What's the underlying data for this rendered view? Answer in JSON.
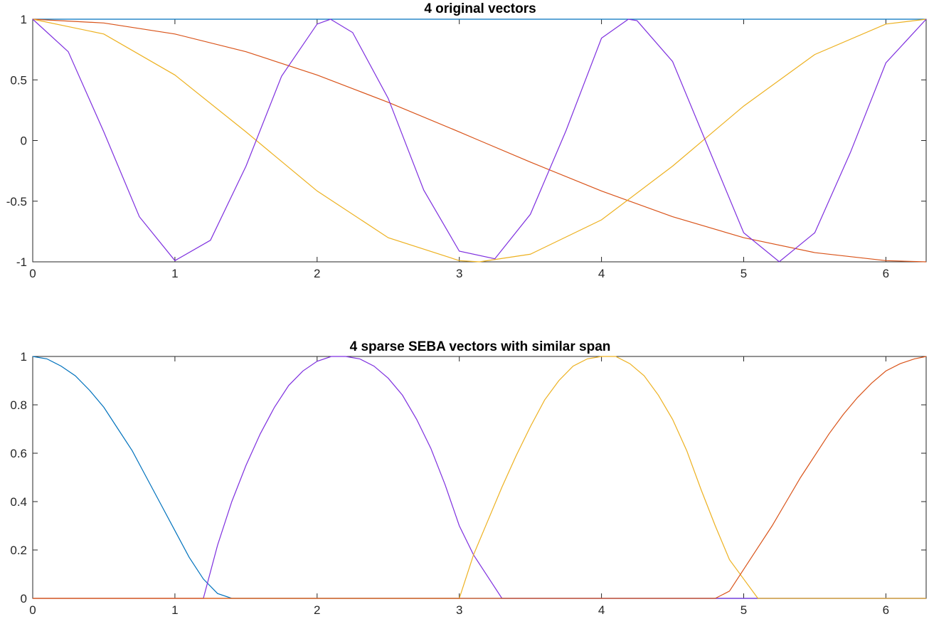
{
  "chart_data": [
    {
      "type": "line",
      "title": "4 original vectors",
      "xlabel": "",
      "ylabel": "",
      "xlim": [
        0,
        6.2832
      ],
      "ylim": [
        -1,
        1
      ],
      "xticks": [
        0,
        1,
        2,
        3,
        4,
        5,
        6
      ],
      "xtick_labels": [
        "0",
        "1",
        "2",
        "3",
        "4",
        "5",
        "6"
      ],
      "yticks": [
        -1,
        -0.5,
        0,
        0.5,
        1
      ],
      "ytick_labels": [
        "-1",
        "-0.5",
        "0",
        "0.5",
        "1"
      ],
      "grid": false,
      "series": [
        {
          "color": "#0072BD",
          "x": [
            0,
            6.2832
          ],
          "y": [
            1,
            1
          ]
        },
        {
          "color": "#D95319",
          "x": [
            0,
            0.5,
            1.0,
            1.5,
            2.0,
            2.5,
            3.0,
            3.1416,
            3.5,
            4.0,
            4.5,
            5.0,
            5.5,
            6.0,
            6.2832
          ],
          "y": [
            1,
            0.969,
            0.878,
            0.732,
            0.54,
            0.315,
            0.071,
            0,
            -0.178,
            -0.416,
            -0.628,
            -0.801,
            -0.924,
            -0.99,
            -1
          ]
        },
        {
          "color": "#EDB120",
          "x": [
            0,
            0.5,
            1.0,
            1.5,
            2.0,
            2.5,
            3.0,
            3.1416,
            3.5,
            4.0,
            4.5,
            5.0,
            5.5,
            6.0,
            6.2832
          ],
          "y": [
            1,
            0.878,
            0.54,
            0.071,
            -0.416,
            -0.801,
            -0.99,
            -1,
            -0.937,
            -0.654,
            -0.211,
            0.284,
            0.709,
            0.96,
            1
          ]
        },
        {
          "color": "#7E2FDF",
          "x": [
            0,
            0.25,
            0.5,
            0.75,
            1.0,
            1.25,
            1.5,
            1.75,
            2.0,
            2.0944,
            2.25,
            2.5,
            2.75,
            3.0,
            3.25,
            3.5,
            3.75,
            4.0,
            4.1888,
            4.25,
            4.5,
            4.75,
            5.0,
            5.25,
            5.5,
            5.75,
            6.0,
            6.2832
          ],
          "y": [
            1,
            0.732,
            0.071,
            -0.628,
            -0.99,
            -0.822,
            -0.211,
            0.53,
            0.96,
            1,
            0.89,
            0.347,
            -0.409,
            -0.912,
            -0.975,
            -0.608,
            0.08,
            0.844,
            1,
            0.988,
            0.651,
            -0.055,
            -0.76,
            -0.999,
            -0.76,
            -0.1,
            0.64,
            1
          ]
        }
      ]
    },
    {
      "type": "line",
      "title": "4 sparse SEBA vectors with similar span",
      "xlabel": "",
      "ylabel": "",
      "xlim": [
        0,
        6.2832
      ],
      "ylim": [
        0,
        1
      ],
      "xticks": [
        0,
        1,
        2,
        3,
        4,
        5,
        6
      ],
      "xtick_labels": [
        "0",
        "1",
        "2",
        "3",
        "4",
        "5",
        "6"
      ],
      "yticks": [
        0,
        0.2,
        0.4,
        0.6,
        0.8,
        1
      ],
      "ytick_labels": [
        "0",
        "0.2",
        "0.4",
        "0.6",
        "0.8",
        "1"
      ],
      "grid": false,
      "series": [
        {
          "color": "#0072BD",
          "x": [
            0,
            0.1,
            0.2,
            0.3,
            0.4,
            0.5,
            0.6,
            0.7,
            0.8,
            0.9,
            1.0,
            1.1,
            1.2,
            1.3,
            1.4,
            6.2832
          ],
          "y": [
            1,
            0.99,
            0.96,
            0.92,
            0.86,
            0.79,
            0.7,
            0.61,
            0.5,
            0.39,
            0.28,
            0.17,
            0.08,
            0.02,
            0,
            0
          ]
        },
        {
          "color": "#7E2FDF",
          "x": [
            0,
            1.2,
            1.3,
            1.4,
            1.5,
            1.6,
            1.7,
            1.8,
            1.9,
            2.0,
            2.1,
            2.2,
            2.3,
            2.4,
            2.5,
            2.6,
            2.7,
            2.8,
            2.9,
            3.0,
            3.1,
            3.2,
            3.3,
            6.2832
          ],
          "y": [
            0,
            0,
            0.22,
            0.4,
            0.55,
            0.68,
            0.79,
            0.88,
            0.94,
            0.98,
            1,
            1,
            0.99,
            0.96,
            0.91,
            0.84,
            0.74,
            0.62,
            0.47,
            0.3,
            0.18,
            0.09,
            0,
            0
          ]
        },
        {
          "color": "#EDB120",
          "x": [
            0,
            3.0,
            3.1,
            3.2,
            3.3,
            3.4,
            3.5,
            3.6,
            3.7,
            3.8,
            3.9,
            4.0,
            4.1,
            4.2,
            4.3,
            4.4,
            4.5,
            4.6,
            4.7,
            4.8,
            4.9,
            5.0,
            5.1,
            6.2832
          ],
          "y": [
            0,
            0,
            0.18,
            0.32,
            0.46,
            0.59,
            0.71,
            0.82,
            0.9,
            0.96,
            0.99,
            1,
            1,
            0.97,
            0.92,
            0.84,
            0.74,
            0.61,
            0.45,
            0.3,
            0.16,
            0.08,
            0,
            0
          ]
        },
        {
          "color": "#D95319",
          "x": [
            0,
            4.8,
            4.9,
            5.0,
            5.1,
            5.2,
            5.3,
            5.4,
            5.5,
            5.6,
            5.7,
            5.8,
            5.9,
            6.0,
            6.1,
            6.2,
            6.2832
          ],
          "y": [
            0,
            0,
            0.03,
            0.12,
            0.21,
            0.3,
            0.4,
            0.5,
            0.59,
            0.68,
            0.76,
            0.83,
            0.89,
            0.94,
            0.97,
            0.99,
            1
          ]
        }
      ]
    }
  ]
}
